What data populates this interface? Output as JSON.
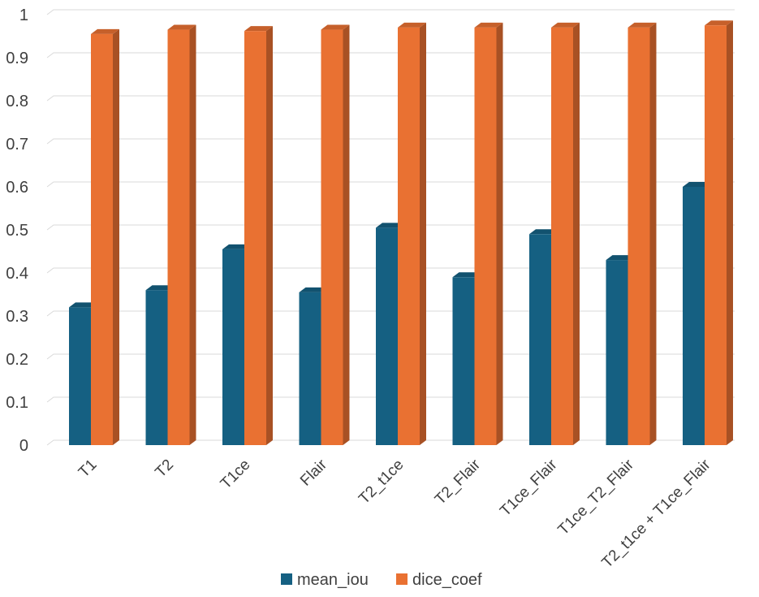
{
  "chart_data": {
    "type": "bar",
    "categories": [
      "T1",
      "T2",
      "T1ce",
      "Flair",
      "T2_t1ce",
      "T2_Flair",
      "T1ce_Flair",
      "T1ce_T2_Flair",
      "T2_t1ce + T1ce_Flair"
    ],
    "series": [
      {
        "name": "mean_iou",
        "values": [
          0.32,
          0.36,
          0.455,
          0.355,
          0.505,
          0.39,
          0.49,
          0.43,
          0.6
        ],
        "color": "#156082"
      },
      {
        "name": "dice_coef",
        "values": [
          0.955,
          0.965,
          0.962,
          0.965,
          0.97,
          0.97,
          0.97,
          0.97,
          0.975
        ],
        "color": "#E97132"
      }
    ],
    "ylim": [
      0,
      1
    ],
    "yticks": [
      "0",
      "0.1",
      "0.2",
      "0.3",
      "0.4",
      "0.5",
      "0.6",
      "0.7",
      "0.8",
      "0.9",
      "1"
    ],
    "grid": true,
    "legend": "bottom",
    "style": "3d-clustered-column"
  }
}
